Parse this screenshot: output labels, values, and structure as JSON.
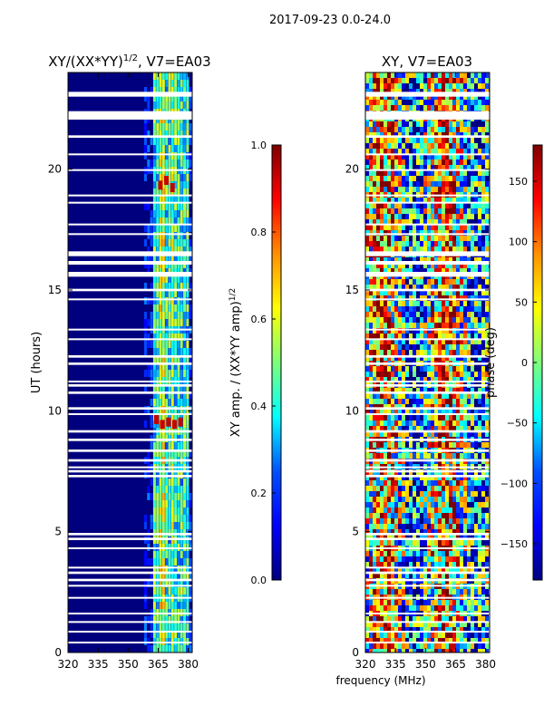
{
  "chart_data": [
    {
      "type": "heatmap",
      "suptitle": "2017-09-23 0.0-24.0",
      "title": "XY/(XX*YY)",
      "title_exponent": "1/2",
      "title_suffix": ", V7=EA03",
      "xlabel": "",
      "ylabel": "UT (hours)",
      "xlim": [
        320,
        382
      ],
      "ylim": [
        0,
        24
      ],
      "xticks": [
        320,
        335,
        350,
        365,
        380
      ],
      "yticks": [
        0,
        5,
        10,
        15,
        20
      ],
      "colorbar": {
        "label": "XY amp. / (XX*YY amp)",
        "label_exponent": "1/2",
        "range": [
          0.0,
          1.0
        ],
        "ticks": [
          "0.0",
          "0.2",
          "0.4",
          "0.6",
          "0.8",
          "1.0"
        ],
        "tick_values": [
          0,
          0.2,
          0.4,
          0.6,
          0.8,
          1.0
        ]
      }
    },
    {
      "type": "heatmap",
      "title": "XY, V7=EA03",
      "xlabel": "frequency (MHz)",
      "ylabel": "",
      "xlim": [
        320,
        382
      ],
      "ylim": [
        0,
        24
      ],
      "xticks": [
        320,
        335,
        350,
        365,
        380
      ],
      "yticks": [
        0,
        5,
        10,
        15,
        20
      ],
      "colorbar": {
        "label": "phase (deg)",
        "range": [
          -180,
          180
        ],
        "ticks": [
          "150",
          "100",
          "50",
          "0",
          "−50",
          "−100",
          "−150"
        ],
        "tick_values": [
          150,
          100,
          50,
          0,
          -50,
          -100,
          -150
        ]
      }
    }
  ],
  "flagged_ut_bands": [
    [
      23.0,
      23.2
    ],
    [
      22.05,
      22.4
    ],
    [
      21.3,
      21.4
    ],
    [
      20.6,
      20.65
    ],
    [
      19.95,
      20.0
    ],
    [
      18.9,
      18.95
    ],
    [
      18.6,
      18.65
    ],
    [
      17.7,
      17.75
    ],
    [
      17.3,
      17.35
    ],
    [
      16.4,
      16.6
    ],
    [
      16.05,
      16.2
    ],
    [
      15.55,
      15.75
    ],
    [
      14.95,
      15.05
    ],
    [
      14.6,
      14.65
    ],
    [
      13.35,
      13.4
    ],
    [
      12.95,
      13.0
    ],
    [
      12.2,
      12.3
    ],
    [
      11.9,
      12.0
    ],
    [
      11.2,
      11.25
    ],
    [
      11.0,
      11.1
    ],
    [
      10.7,
      10.8
    ],
    [
      10.05,
      10.15
    ],
    [
      9.85,
      9.9
    ],
    [
      9.1,
      9.2
    ],
    [
      8.75,
      8.85
    ],
    [
      8.3,
      8.4
    ],
    [
      7.9,
      8.0
    ],
    [
      7.65,
      7.7
    ],
    [
      7.45,
      7.55
    ],
    [
      7.25,
      7.35
    ],
    [
      4.85,
      4.95
    ],
    [
      4.65,
      4.75
    ],
    [
      4.3,
      4.35
    ],
    [
      3.5,
      3.55
    ],
    [
      3.25,
      3.35
    ],
    [
      2.95,
      3.05
    ],
    [
      2.75,
      2.8
    ],
    [
      2.25,
      2.3
    ],
    [
      1.6,
      1.65
    ],
    [
      1.25,
      1.3
    ],
    [
      0.85,
      0.9
    ],
    [
      0.4,
      0.45
    ]
  ]
}
